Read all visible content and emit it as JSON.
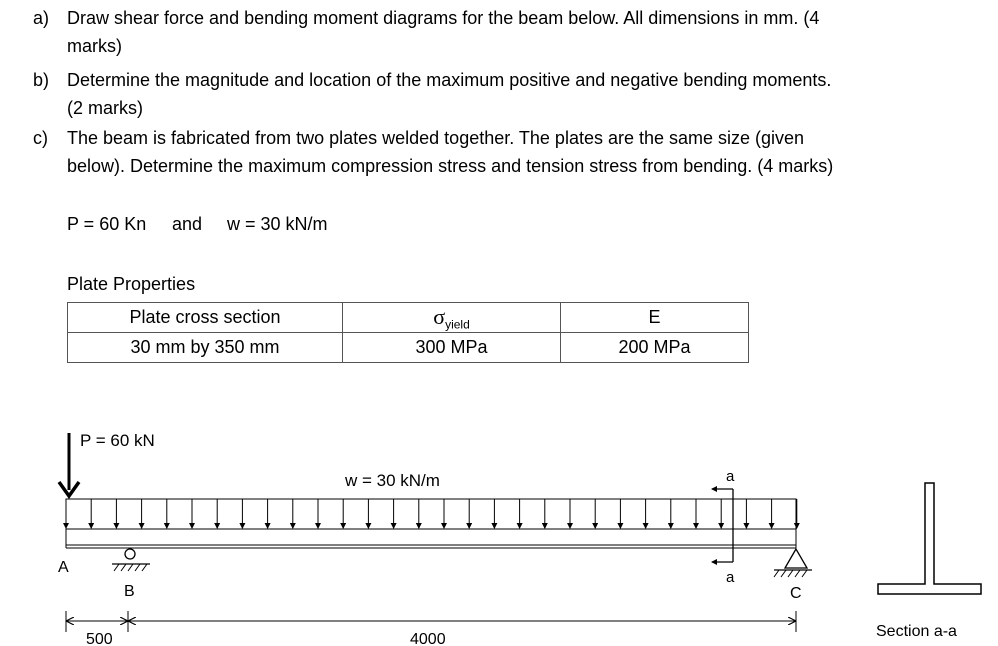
{
  "questions": [
    {
      "label": "a)",
      "lines": [
        "Draw shear force and bending moment diagrams for the beam below. All dimensions in mm. (4",
        "marks)"
      ]
    },
    {
      "label": "b)",
      "lines": [
        "Determine the magnitude and location of the maximum positive and negative bending moments.",
        "(2 marks)"
      ]
    },
    {
      "label": "c)",
      "lines": [
        "The beam is fabricated from two plates welded together. The plates are the same size (given",
        "below). Determine the maximum compression stress and tension stress from bending. (4 marks)"
      ]
    }
  ],
  "given": {
    "p": "P = 60 Kn",
    "and": "and",
    "w": "w = 30 kN/m"
  },
  "plate": {
    "title": "Plate Properties",
    "headers": [
      "Plate cross section",
      "σ",
      "yield",
      "E"
    ],
    "values": [
      "30 mm by 350 mm",
      "300 MPa",
      "200 MPa"
    ]
  },
  "diagram": {
    "load_p": "P = 60 kN",
    "load_w": "w = 30 kN/m",
    "point_a": "A",
    "point_b": "B",
    "point_c": "C",
    "cut_top": "a",
    "cut_bottom": "a",
    "dim_ab": "500",
    "dim_bc": "4000",
    "section_label": "Section a-a"
  }
}
